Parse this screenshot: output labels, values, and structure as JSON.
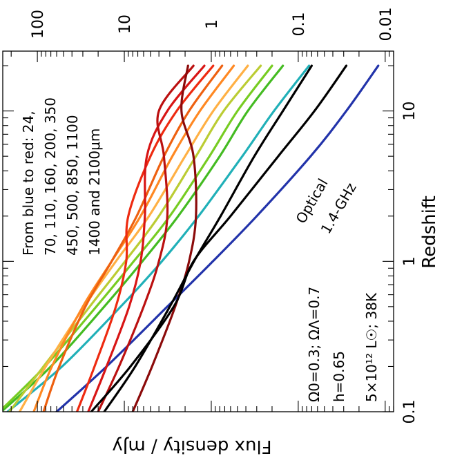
{
  "chart_data": {
    "type": "line",
    "title": "",
    "xlabel": "Redshift",
    "ylabel": "Flux density / mJy",
    "x_scale": "log",
    "y_scale": "log",
    "xlim": [
      0.1,
      25
    ],
    "ylim": [
      0.008,
      250
    ],
    "x_ticks": [
      {
        "value": 0.1,
        "label": "0.1"
      },
      {
        "value": 1,
        "label": "1"
      },
      {
        "value": 10,
        "label": "10"
      }
    ],
    "y_ticks": [
      {
        "value": 100,
        "label": "100"
      },
      {
        "value": 10,
        "label": "10"
      },
      {
        "value": 1,
        "label": "1"
      },
      {
        "value": 0.1,
        "label": "0.1"
      },
      {
        "value": 0.01,
        "label": "0.01"
      }
    ],
    "grid": false,
    "legend": "none",
    "notes": "Figure is rotated 90 degrees; redshift axis runs vertically, flux density increases to the left.",
    "annotations": {
      "legend_text": [
        "From blue to red: 24,",
        "70, 110, 160, 200, 350",
        "450, 500, 850, 1100",
        "1400 and 2100μm"
      ],
      "cosmology": [
        "Ω0=0.3; ΩΛ=0.7",
        "h=0.65",
        "5×10¹² L☉; 38K"
      ],
      "optical_label": "Optical",
      "radio_label": "1.4-GHz"
    },
    "x": [
      0.1,
      0.2,
      0.5,
      1,
      2,
      5,
      10,
      20
    ],
    "series": [
      {
        "color": "#2233aa",
        "values": [
          60,
          16,
          3.2,
          0.96,
          0.3,
          0.072,
          0.028,
          0.012
        ]
      },
      {
        "color": "#20b0b8",
        "values": [
          220,
          52,
          11,
          3.7,
          1.4,
          0.44,
          0.19,
          0.075
        ]
      },
      {
        "color": "#44bb22",
        "values": [
          260,
          70,
          17,
          6.2,
          2.4,
          0.8,
          0.38,
          0.15
        ]
      },
      {
        "color": "#77cc22",
        "values": [
          275,
          82,
          21,
          7.8,
          3.0,
          1.05,
          0.5,
          0.2
        ]
      },
      {
        "color": "#bbcc33",
        "values": [
          210,
          85,
          25,
          9.8,
          4.0,
          1.5,
          0.72,
          0.27
        ]
      },
      {
        "color": "#ffb044",
        "values": [
          160,
          80,
          29,
          12.5,
          5.2,
          2.0,
          0.95,
          0.38
        ]
      },
      {
        "color": "#ff8822",
        "values": [
          110,
          68,
          30,
          14,
          6.5,
          2.8,
          1.35,
          0.55
        ]
      },
      {
        "color": "#ee6010",
        "values": [
          85,
          56,
          28,
          14,
          7.2,
          3.5,
          1.8,
          0.75
        ]
      },
      {
        "color": "#ee2a10",
        "values": [
          35,
          22,
          12.5,
          9.5,
          9.0,
          5.0,
          2.5,
          0.95
        ]
      },
      {
        "color": "#d81515",
        "values": [
          26,
          16,
          8.8,
          6.5,
          5.8,
          5.5,
          3.2,
          1.2
        ]
      },
      {
        "color": "#bb1010",
        "values": [
          20,
          11.5,
          6.0,
          4.0,
          3.2,
          3.5,
          4.0,
          1.6
        ]
      },
      {
        "color": "#8b0a0a",
        "values": [
          8,
          4.8,
          2.6,
          1.8,
          1.5,
          1.6,
          2.2,
          1.85
        ]
      },
      {
        "name": "Optical",
        "color": "#000000",
        "values": [
          24,
          8.5,
          2.7,
          1.6,
          0.6,
          0.17,
          0.065,
          0.028
        ]
      },
      {
        "name": "1.4-GHz",
        "color": "#000000",
        "values": [
          17,
          7.5,
          3.0,
          1.58,
          0.78,
          0.32,
          0.15,
          0.07
        ]
      }
    ]
  }
}
